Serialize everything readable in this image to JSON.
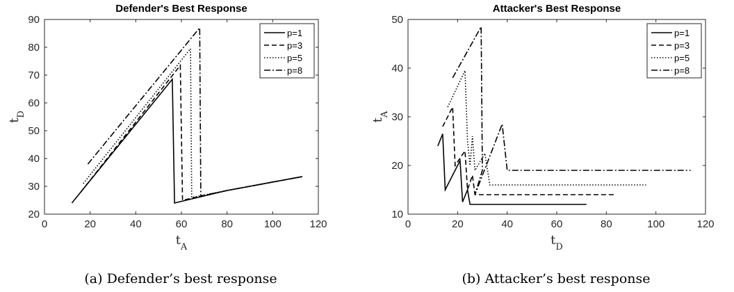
{
  "chart_data": [
    {
      "type": "line",
      "title": "Defender's Best Response",
      "xlabel": "t_A",
      "ylabel": "t_D",
      "xlim": [
        0,
        120
      ],
      "ylim": [
        20,
        90
      ],
      "xticks": [
        0,
        20,
        40,
        60,
        80,
        100,
        120
      ],
      "yticks": [
        20,
        30,
        40,
        50,
        60,
        70,
        80,
        90
      ],
      "legend_position": "top-right",
      "caption": "(a) Defender’s best response",
      "series": [
        {
          "name": "p=1",
          "dash": "solid",
          "points": [
            [
              12,
              24
            ],
            [
              56,
              68.5
            ],
            [
              57,
              24
            ],
            [
              80,
              28.5
            ],
            [
              113,
              33.5
            ]
          ]
        },
        {
          "name": "p=3",
          "dash": "dashed",
          "points": [
            [
              16,
              28
            ],
            [
              59.5,
              73.5
            ],
            [
              60.5,
              25
            ],
            [
              80,
              28.5
            ],
            [
              113,
              33.5
            ]
          ]
        },
        {
          "name": "p=5",
          "dash": "dotted",
          "points": [
            [
              17,
              31
            ],
            [
              64,
              79.5
            ],
            [
              64.5,
              26
            ],
            [
              80,
              28.5
            ],
            [
              113,
              33.5
            ]
          ]
        },
        {
          "name": "p=8",
          "dash": "dashdot",
          "points": [
            [
              19,
              38
            ],
            [
              68,
              87
            ],
            [
              68.5,
              26.5
            ],
            [
              80,
              28.5
            ],
            [
              113,
              33.5
            ]
          ]
        }
      ]
    },
    {
      "type": "line",
      "title": "Attacker's Best Response",
      "xlabel": "t_D",
      "ylabel": "t_A",
      "xlim": [
        0,
        120
      ],
      "ylim": [
        10,
        50
      ],
      "xticks": [
        0,
        20,
        40,
        60,
        80,
        100,
        120
      ],
      "yticks": [
        10,
        20,
        30,
        40,
        50
      ],
      "legend_position": "top-right",
      "caption": "(b) Attacker’s best response",
      "series": [
        {
          "name": "p=1",
          "dash": "solid",
          "points": [
            [
              12,
              24
            ],
            [
              14,
              26.5
            ],
            [
              15,
              15
            ],
            [
              21,
              21
            ],
            [
              22,
              12.5
            ],
            [
              24,
              15
            ],
            [
              25,
              12
            ],
            [
              72,
              12
            ]
          ]
        },
        {
          "name": "p=3",
          "dash": "dashed",
          "points": [
            [
              14,
              28
            ],
            [
              18,
              32
            ],
            [
              19,
              20
            ],
            [
              23,
              23
            ],
            [
              24,
              15
            ],
            [
              26,
              18
            ],
            [
              27,
              14
            ],
            [
              84,
              14
            ]
          ]
        },
        {
          "name": "p=5",
          "dash": "dotted",
          "points": [
            [
              16,
              32
            ],
            [
              23,
              39.5
            ],
            [
              24,
              25
            ],
            [
              25,
              20
            ],
            [
              26,
              26
            ],
            [
              27,
              19
            ],
            [
              31,
              22.5
            ],
            [
              33,
              16
            ],
            [
              96,
              16
            ]
          ]
        },
        {
          "name": "p=8",
          "dash": "dashdot",
          "points": [
            [
              18,
              38
            ],
            [
              29.5,
              48.5
            ],
            [
              30,
              19
            ],
            [
              27,
              14
            ],
            [
              38,
              28.5
            ],
            [
              40,
              19
            ],
            [
              114,
              19
            ]
          ]
        }
      ]
    }
  ]
}
